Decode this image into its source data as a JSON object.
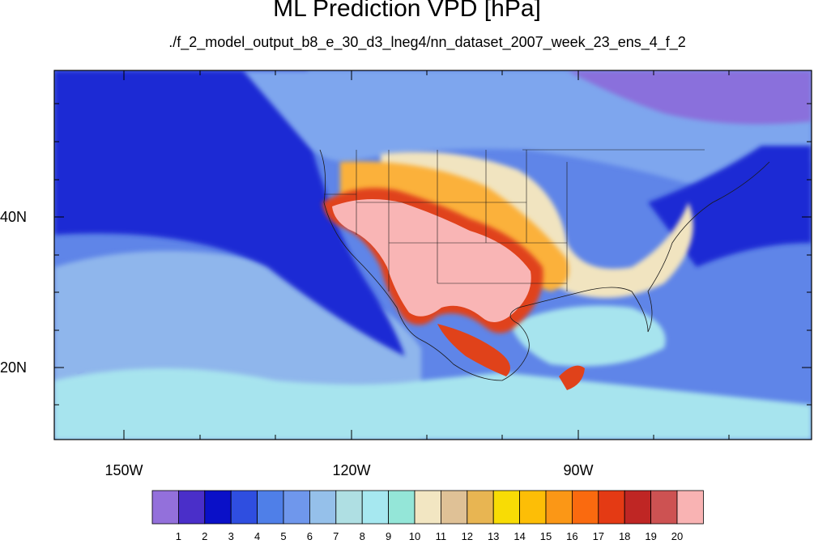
{
  "title": "ML Prediction VPD [hPa]",
  "subtitle": "./f_2_model_output_b8_e_30_d3_lneg4/nn_dataset_2007_week_23_ens_4_f_2",
  "axes": {
    "lon_labels": [
      "150W",
      "120W",
      "90W"
    ],
    "lat_labels": [
      "40N",
      "20N"
    ]
  },
  "colorbar": {
    "labels": [
      "1",
      "2",
      "3",
      "4",
      "5",
      "6",
      "7",
      "8",
      "9",
      "10",
      "11",
      "12",
      "13",
      "14",
      "15",
      "16",
      "17",
      "18",
      "19",
      "20"
    ],
    "colors": [
      "#9370db",
      "#4a2fc9",
      "#0a10c8",
      "#2f4ee0",
      "#4f7fe8",
      "#6f97ec",
      "#95c0ea",
      "#afdfe3",
      "#a6e8f0",
      "#94e6d8",
      "#f2e6c2",
      "#dfc196",
      "#e8b552",
      "#f8dc05",
      "#fdbe06",
      "#fb9716",
      "#fa6a0f",
      "#e43a14",
      "#bf2624",
      "#cd5252",
      "#f9b3b3"
    ]
  },
  "colors": {
    "deep_ocean": "#1b2bd4",
    "ocean": "#5f85e8",
    "mid_ocean": "#8fb6ec",
    "light_ocean": "#a7e4ee",
    "canada": "#7ea6ee",
    "arctic": "#8a6fdc",
    "great_plains": "#f1e4c0",
    "dry_core": "#f9b5b5",
    "hot_edge": "#e0421a",
    "warm": "#fbb13a"
  }
}
